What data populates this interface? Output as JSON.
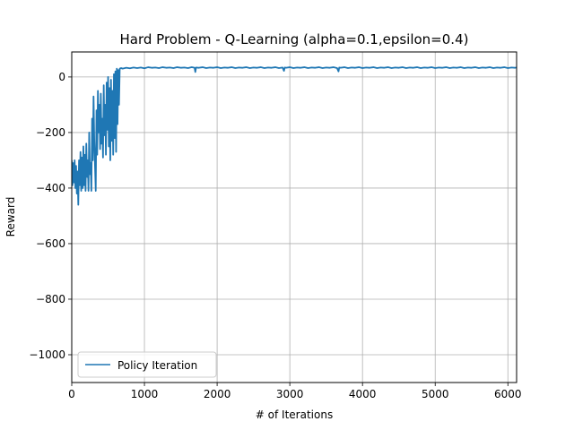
{
  "chart_data": {
    "type": "line",
    "title": "Hard Problem - Q-Learning (alpha=0.1,epsilon=0.4)",
    "xlabel": "# of Iterations",
    "ylabel": "Reward",
    "xlim": [
      0,
      6120
    ],
    "ylim": [
      -1100,
      90
    ],
    "xticks": [
      0,
      1000,
      2000,
      3000,
      4000,
      5000,
      6000
    ],
    "xtick_labels": [
      "0",
      "1000",
      "2000",
      "3000",
      "4000",
      "5000",
      "6000"
    ],
    "yticks": [
      -1000,
      -800,
      -600,
      -400,
      -200,
      0
    ],
    "ytick_labels": [
      "−1000",
      "−800",
      "−600",
      "−400",
      "−200",
      "0"
    ],
    "grid": true,
    "legend_position": "lower-left",
    "series": [
      {
        "name": "Policy Iteration",
        "color": "#1f77b4",
        "points": [
          [
            0,
            -300
          ],
          [
            10,
            -390
          ],
          [
            20,
            -310
          ],
          [
            30,
            -380
          ],
          [
            40,
            -300
          ],
          [
            50,
            -400
          ],
          [
            60,
            -320
          ],
          [
            70,
            -420
          ],
          [
            80,
            -340
          ],
          [
            90,
            -460
          ],
          [
            100,
            -300
          ],
          [
            110,
            -390
          ],
          [
            120,
            -270
          ],
          [
            130,
            -410
          ],
          [
            140,
            -290
          ],
          [
            150,
            -400
          ],
          [
            160,
            -250
          ],
          [
            170,
            -390
          ],
          [
            180,
            -280
          ],
          [
            190,
            -410
          ],
          [
            200,
            -240
          ],
          [
            210,
            -360
          ],
          [
            220,
            -300
          ],
          [
            230,
            -410
          ],
          [
            240,
            -200
          ],
          [
            250,
            -350
          ],
          [
            260,
            -310
          ],
          [
            270,
            -410
          ],
          [
            280,
            -150
          ],
          [
            290,
            -300
          ],
          [
            300,
            -70
          ],
          [
            310,
            -230
          ],
          [
            320,
            -320
          ],
          [
            330,
            -410
          ],
          [
            340,
            -120
          ],
          [
            350,
            -280
          ],
          [
            360,
            -50
          ],
          [
            370,
            -200
          ],
          [
            380,
            -100
          ],
          [
            390,
            -260
          ],
          [
            400,
            -60
          ],
          [
            410,
            -240
          ],
          [
            420,
            -150
          ],
          [
            430,
            -290
          ],
          [
            440,
            -30
          ],
          [
            450,
            -210
          ],
          [
            460,
            -100
          ],
          [
            470,
            -280
          ],
          [
            480,
            -20
          ],
          [
            490,
            -190
          ],
          [
            500,
            0
          ],
          [
            510,
            -250
          ],
          [
            520,
            -40
          ],
          [
            530,
            -300
          ],
          [
            540,
            -10
          ],
          [
            550,
            -230
          ],
          [
            560,
            -50
          ],
          [
            570,
            -280
          ],
          [
            580,
            10
          ],
          [
            590,
            -220
          ],
          [
            600,
            20
          ],
          [
            610,
            -270
          ],
          [
            620,
            30
          ],
          [
            630,
            -170
          ],
          [
            640,
            25
          ],
          [
            650,
            -100
          ],
          [
            660,
            30
          ],
          [
            680,
            32
          ],
          [
            700,
            30
          ],
          [
            750,
            33
          ],
          [
            800,
            31
          ],
          [
            850,
            34
          ],
          [
            900,
            32
          ],
          [
            950,
            34
          ],
          [
            1000,
            31
          ],
          [
            1050,
            35
          ],
          [
            1100,
            33
          ],
          [
            1150,
            34
          ],
          [
            1200,
            32
          ],
          [
            1250,
            35
          ],
          [
            1300,
            33
          ],
          [
            1350,
            34
          ],
          [
            1400,
            32
          ],
          [
            1450,
            35
          ],
          [
            1500,
            33
          ],
          [
            1550,
            34
          ],
          [
            1600,
            32
          ],
          [
            1650,
            35
          ],
          [
            1690,
            33
          ],
          [
            1700,
            18
          ],
          [
            1710,
            34
          ],
          [
            1750,
            33
          ],
          [
            1800,
            35
          ],
          [
            1850,
            32
          ],
          [
            1900,
            34
          ],
          [
            1950,
            33
          ],
          [
            2000,
            35
          ],
          [
            2050,
            32
          ],
          [
            2100,
            34
          ],
          [
            2150,
            33
          ],
          [
            2200,
            35
          ],
          [
            2250,
            32
          ],
          [
            2300,
            34
          ],
          [
            2350,
            33
          ],
          [
            2400,
            35
          ],
          [
            2450,
            32
          ],
          [
            2500,
            34
          ],
          [
            2550,
            33
          ],
          [
            2600,
            35
          ],
          [
            2650,
            32
          ],
          [
            2700,
            34
          ],
          [
            2750,
            33
          ],
          [
            2800,
            35
          ],
          [
            2850,
            32
          ],
          [
            2900,
            34
          ],
          [
            2920,
            22
          ],
          [
            2930,
            34
          ],
          [
            2950,
            33
          ],
          [
            3000,
            35
          ],
          [
            3050,
            32
          ],
          [
            3100,
            34
          ],
          [
            3150,
            33
          ],
          [
            3200,
            35
          ],
          [
            3250,
            32
          ],
          [
            3300,
            34
          ],
          [
            3350,
            33
          ],
          [
            3400,
            35
          ],
          [
            3450,
            32
          ],
          [
            3500,
            34
          ],
          [
            3550,
            33
          ],
          [
            3600,
            35
          ],
          [
            3650,
            32
          ],
          [
            3670,
            20
          ],
          [
            3680,
            34
          ],
          [
            3700,
            33
          ],
          [
            3750,
            35
          ],
          [
            3800,
            32
          ],
          [
            3850,
            34
          ],
          [
            3900,
            33
          ],
          [
            3950,
            35
          ],
          [
            4000,
            32
          ],
          [
            4050,
            34
          ],
          [
            4100,
            33
          ],
          [
            4150,
            35
          ],
          [
            4200,
            32
          ],
          [
            4250,
            34
          ],
          [
            4300,
            33
          ],
          [
            4350,
            35
          ],
          [
            4400,
            32
          ],
          [
            4450,
            34
          ],
          [
            4500,
            33
          ],
          [
            4550,
            35
          ],
          [
            4600,
            32
          ],
          [
            4650,
            34
          ],
          [
            4700,
            33
          ],
          [
            4750,
            35
          ],
          [
            4800,
            32
          ],
          [
            4850,
            34
          ],
          [
            4900,
            33
          ],
          [
            4950,
            35
          ],
          [
            5000,
            32
          ],
          [
            5050,
            34
          ],
          [
            5100,
            33
          ],
          [
            5150,
            35
          ],
          [
            5200,
            32
          ],
          [
            5250,
            34
          ],
          [
            5300,
            33
          ],
          [
            5350,
            35
          ],
          [
            5400,
            32
          ],
          [
            5450,
            34
          ],
          [
            5500,
            33
          ],
          [
            5550,
            35
          ],
          [
            5600,
            32
          ],
          [
            5650,
            34
          ],
          [
            5700,
            33
          ],
          [
            5750,
            35
          ],
          [
            5800,
            32
          ],
          [
            5850,
            34
          ],
          [
            5900,
            33
          ],
          [
            5950,
            35
          ],
          [
            6000,
            32
          ],
          [
            6050,
            34
          ],
          [
            6100,
            33
          ],
          [
            6120,
            34
          ]
        ]
      }
    ]
  }
}
